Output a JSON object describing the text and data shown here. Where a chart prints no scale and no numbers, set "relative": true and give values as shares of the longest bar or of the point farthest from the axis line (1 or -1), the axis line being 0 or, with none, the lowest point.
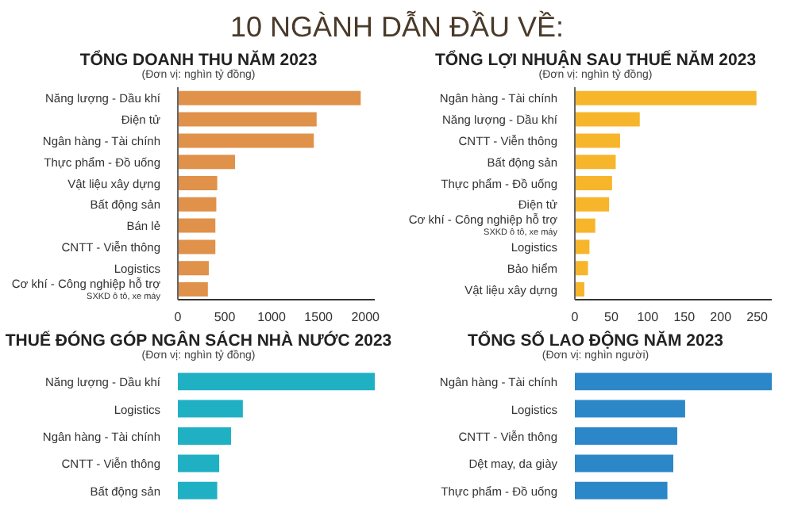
{
  "chart_data": [
    {
      "type": "bar",
      "orientation": "horizontal",
      "annotations": [
        "10 NGÀNH DẪN ĐẦU VỀ:"
      ],
      "title": "TỔNG DOANH THU NĂM 2023",
      "subtitle": "(Đơn vị: nghìn tỷ đồng)",
      "categories": [
        "Năng lượng - Dầu khí",
        "Điện tử",
        "Ngân hàng - Tài chính",
        "Thực phẩm - Đồ uống",
        "Vật liệu xây dựng",
        "Bất động sản",
        "Bán lẻ",
        "CNTT - Viễn thông",
        "Logistics",
        "Cơ khí - Công nghiệp hỗ trợ\nSXKD ô tô, xe máy"
      ],
      "values": [
        1950,
        1480,
        1450,
        610,
        420,
        410,
        400,
        400,
        330,
        320
      ],
      "color": "#e0914a",
      "xlim": [
        0,
        2100
      ],
      "xticks": [
        0,
        500,
        1000,
        1500,
        2000
      ],
      "grid": false,
      "legend": false
    },
    {
      "type": "bar",
      "orientation": "horizontal",
      "title": "TỔNG LỢI NHUẬN SAU THUẾ NĂM 2023",
      "subtitle": "(Đơn vị: nghìn tỷ đồng)",
      "categories": [
        "Ngân hàng - Tài chính",
        "Năng lượng - Dầu khí",
        "CNTT - Viễn thông",
        "Bất động sản",
        "Thực phẩm - Đồ uống",
        "Điện tử",
        "Cơ khí - Công nghiệp hỗ trợ\nSXKD ô tô, xe máy",
        "Logistics",
        "Bảo hiểm",
        "Vật liệu xây dựng"
      ],
      "values": [
        249,
        89,
        62,
        56,
        51,
        47,
        28,
        20,
        18,
        13
      ],
      "color": "#f7b52b",
      "xlim": [
        0,
        270
      ],
      "xticks": [
        0,
        50,
        100,
        150,
        200,
        250
      ],
      "grid": false,
      "legend": false
    },
    {
      "type": "bar",
      "orientation": "horizontal",
      "relative": true,
      "title": "THUẾ ĐÓNG GÓP NGÂN SÁCH NHÀ NƯỚC 2023",
      "subtitle": "(Đơn vị: nghìn tỷ đồng)",
      "categories": [
        "Năng lượng - Dầu khí",
        "Logistics",
        "Ngân hàng - Tài chính",
        "CNTT - Viễn thông",
        "Bất động sản"
      ],
      "values": [
        1,
        0.33,
        0.27,
        0.21,
        0.2
      ],
      "color": "#1fb0c4",
      "grid": false,
      "legend": false
    },
    {
      "type": "bar",
      "orientation": "horizontal",
      "relative": true,
      "title": "TỔNG SỐ LAO ĐỘNG NĂM 2023",
      "subtitle": "(Đơn vị: nghìn người)",
      "categories": [
        "Ngân hàng - Tài chính",
        "Logistics",
        "CNTT - Viễn thông",
        "Dệt may, da giày",
        "Thực phẩm - Đồ uống"
      ],
      "values": [
        1,
        0.56,
        0.52,
        0.5,
        0.47
      ],
      "color": "#2b87c8",
      "grid": false,
      "legend": false
    }
  ]
}
